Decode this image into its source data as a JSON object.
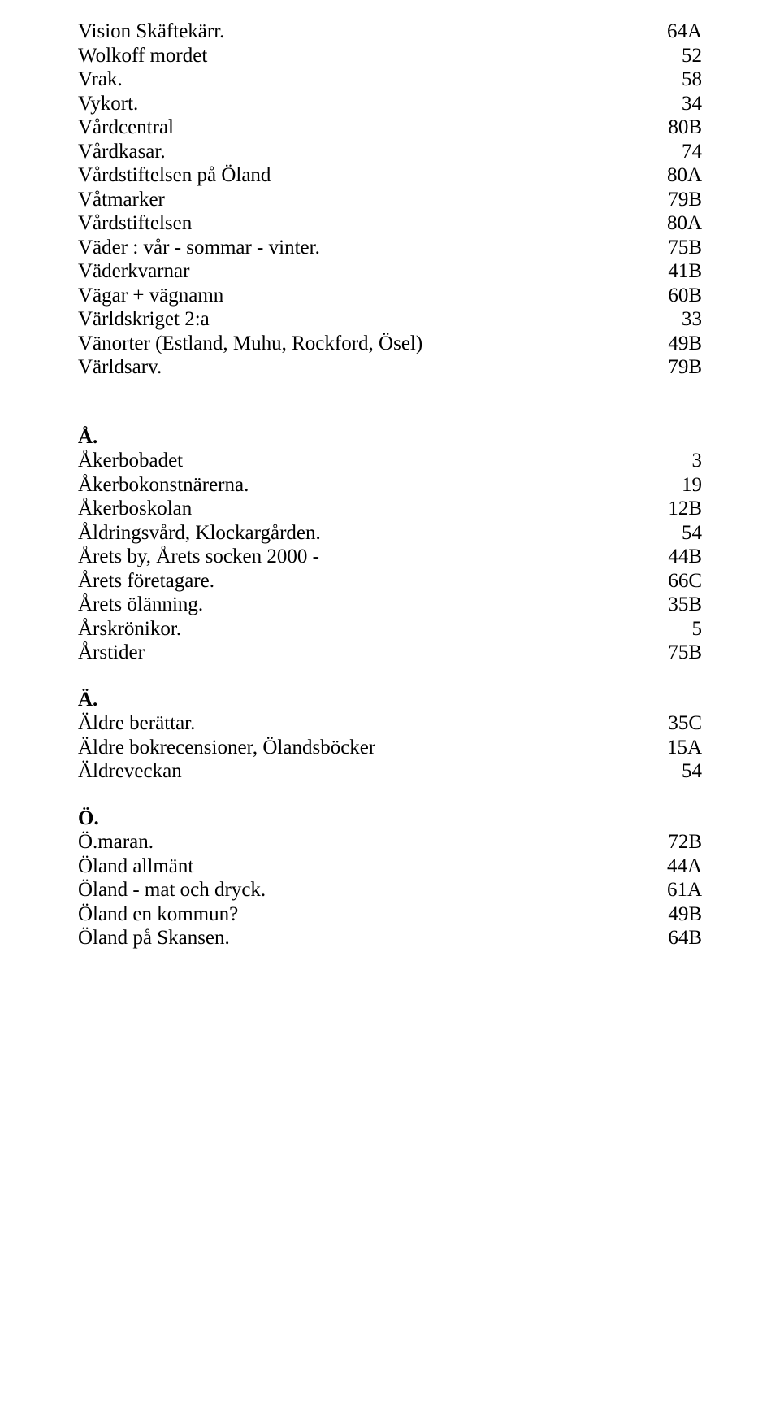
{
  "font": {
    "family": "Times New Roman",
    "size_pt": 19,
    "color": "#000000"
  },
  "background_color": "#ffffff",
  "sections": [
    {
      "heading": null,
      "items": [
        {
          "label": "Vision Skäftekärr.",
          "value": "64A"
        },
        {
          "label": "Wolkoff mordet",
          "value": "52"
        },
        {
          "label": "Vrak.",
          "value": "58"
        },
        {
          "label": "Vykort.",
          "value": "34"
        },
        {
          "label": "Vårdcentral",
          "value": "80B"
        },
        {
          "label": "Vårdkasar.",
          "value": "74"
        },
        {
          "label": "Vårdstiftelsen på Öland",
          "value": "80A"
        },
        {
          "label": "Våtmarker",
          "value": "79B"
        },
        {
          "label": "Vårdstiftelsen",
          "value": "80A"
        },
        {
          "label": "Väder : vår - sommar - vinter.",
          "value": "75B"
        },
        {
          "label": "Väderkvarnar",
          "value": "41B"
        },
        {
          "label": "Vägar + vägnamn",
          "value": "60B"
        },
        {
          "label": "Världskriget 2:a",
          "value": "33"
        },
        {
          "label": "Vänorter (Estland, Muhu, Rockford, Ösel)",
          "value": "49B"
        },
        {
          "label": "Världsarv.",
          "value": "79B"
        }
      ]
    },
    {
      "heading": "Å.",
      "items": [
        {
          "label": "Åkerbobadet",
          "value": "3"
        },
        {
          "label": "Åkerbokonstnärerna.",
          "value": "19"
        },
        {
          "label": "Åkerboskolan",
          "value": "12B"
        },
        {
          "label": "Åldringsvård, Klockargården.",
          "value": "54"
        },
        {
          "label": "Årets by, Årets socken 2000 -",
          "value": "44B"
        },
        {
          "label": "Årets företagare.",
          "value": "66C"
        },
        {
          "label": "Årets ölänning.",
          "value": "35B"
        },
        {
          "label": "Årskrönikor.",
          "value": "5"
        },
        {
          "label": "Årstider",
          "value": "75B"
        }
      ]
    },
    {
      "heading": "Ä.",
      "items": [
        {
          "label": "Äldre berättar.",
          "value": "35C"
        },
        {
          "label": "Äldre bokrecensioner, Ölandsböcker",
          "value": "15A"
        },
        {
          "label": "Äldreveckan",
          "value": "54"
        }
      ]
    },
    {
      "heading": "Ö.",
      "items": [
        {
          "label": "Ö.maran.",
          "value": "72B"
        },
        {
          "label": "Öland allmänt",
          "value": "44A"
        },
        {
          "label": "Öland - mat och dryck.",
          "value": "61A"
        },
        {
          "label": "Öland en kommun?",
          "value": "49B"
        },
        {
          "label": "Öland på Skansen.",
          "value": "64B"
        }
      ]
    }
  ]
}
